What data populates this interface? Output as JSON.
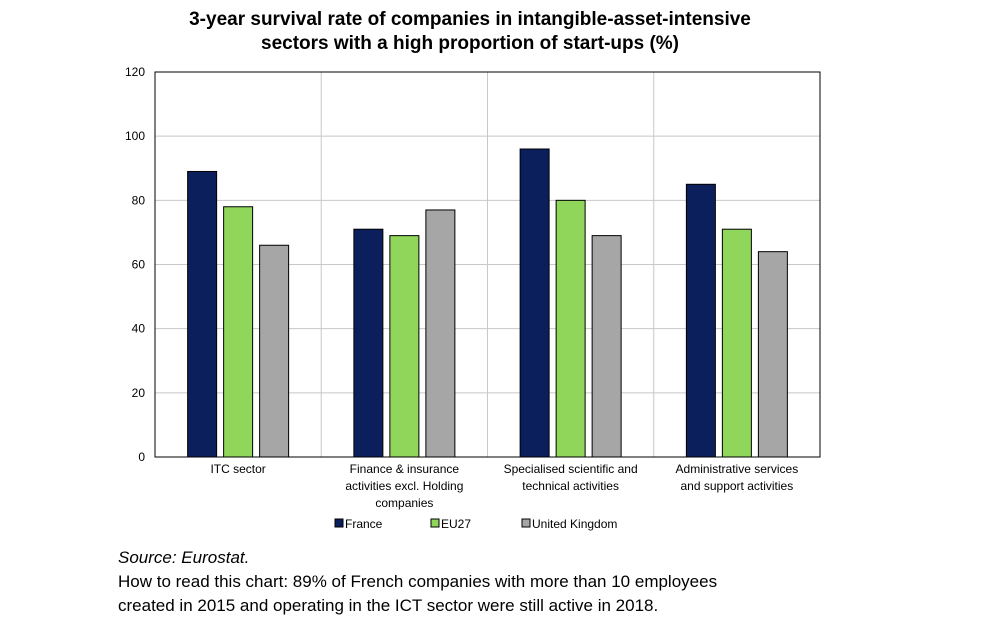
{
  "title_line1": "3-year survival rate of companies in intangible-asset-intensive",
  "title_line2": "sectors with a high proportion of start-ups (%)",
  "source": "Source: Eurostat.",
  "note_line1": "How to read this chart: 89% of French companies with more than 10 employees",
  "note_line2": "created in 2015 and operating in the ICT sector were still active in 2018.",
  "chart_data": {
    "type": "bar",
    "categories": [
      [
        "ITC sector"
      ],
      [
        "Finance & insurance",
        "activities excl. Holding",
        "companies"
      ],
      [
        "Specialised scientific and",
        "technical activities"
      ],
      [
        "Administrative services",
        "and support activities"
      ]
    ],
    "series": [
      {
        "name": "France",
        "color": "#0b1f5c",
        "values": [
          89,
          71,
          96,
          85
        ]
      },
      {
        "name": "EU27",
        "color": "#8fd65a",
        "values": [
          78,
          69,
          80,
          71
        ]
      },
      {
        "name": "United Kingdom",
        "color": "#a6a6a6",
        "values": [
          66,
          77,
          69,
          64
        ]
      }
    ],
    "ylim": [
      0,
      120
    ],
    "yticks": [
      0,
      20,
      40,
      60,
      80,
      100,
      120
    ],
    "grid": true,
    "legend": "bottom"
  }
}
